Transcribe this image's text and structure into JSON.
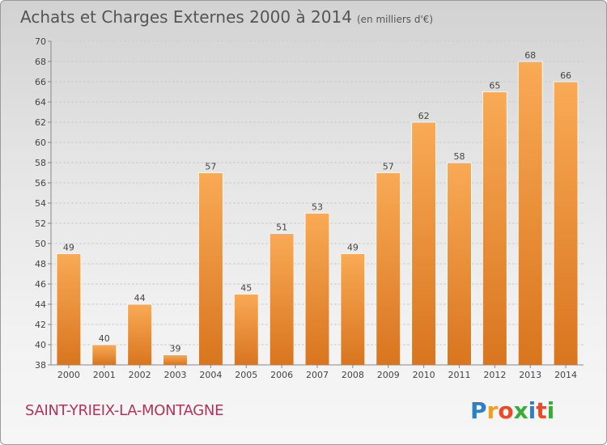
{
  "header": {
    "title": "Achats et Charges Externes 2000 à 2014",
    "subtitle": "(en milliers d'€)"
  },
  "footer": {
    "town": "SAINT-YRIEIX-LA-MONTAGNE",
    "logo_text": "Proxiti"
  },
  "colors": {
    "bar_light": "#f9aa55",
    "bar_dark": "#d9751f",
    "grid": "#cccccc",
    "axis": "#888888"
  },
  "chart_data": {
    "type": "bar",
    "title": "Achats et Charges Externes 2000 à 2014",
    "subtitle": "(en milliers d'€)",
    "categories": [
      "2000",
      "2001",
      "2002",
      "2003",
      "2004",
      "2005",
      "2006",
      "2007",
      "2008",
      "2009",
      "2010",
      "2011",
      "2012",
      "2013",
      "2014"
    ],
    "values": [
      49,
      40,
      44,
      39,
      57,
      45,
      51,
      53,
      49,
      57,
      62,
      58,
      65,
      68,
      66
    ],
    "ylim": [
      38,
      70
    ],
    "yticks": [
      38,
      40,
      42,
      44,
      46,
      48,
      50,
      52,
      54,
      56,
      58,
      60,
      62,
      64,
      66,
      68,
      70
    ],
    "grid": true,
    "data_labels": true
  }
}
